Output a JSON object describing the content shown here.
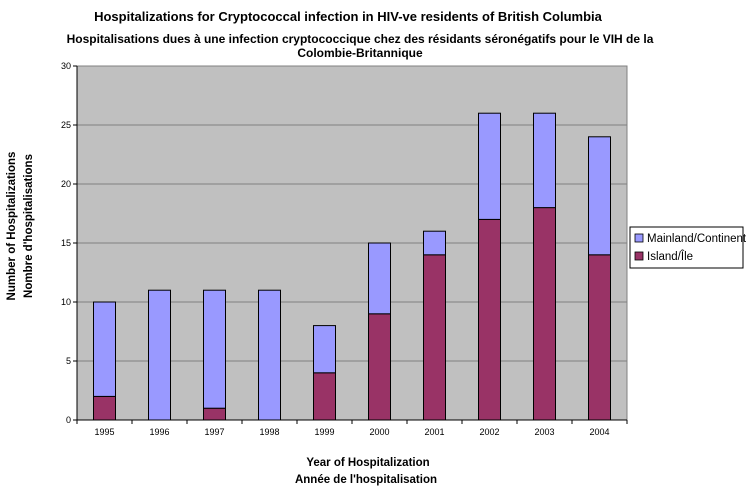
{
  "chart_data": {
    "type": "bar",
    "stacked": true,
    "title": "Hospitalizations for Cryptococcal infection in HIV-ve residents of British Columbia",
    "subtitle_lines": [
      "Hospitalisations dues à une infection cryptococcique chez des résidants séronégatifs pour le VIH de la",
      "Colombie-Britannique"
    ],
    "xlabel_lines": [
      "Year of Hospitalization",
      "Année de l'hospitalisation"
    ],
    "ylabel_lines": [
      "Number of Hospitalizations",
      "Nombre d'hospitalisations"
    ],
    "categories": [
      "1995",
      "1996",
      "1997",
      "1998",
      "1999",
      "2000",
      "2001",
      "2002",
      "2003",
      "2004"
    ],
    "series": [
      {
        "name": "Island/Île",
        "color": "#993366",
        "values": [
          2,
          0,
          1,
          0,
          4,
          9,
          14,
          17,
          18,
          14
        ]
      },
      {
        "name": "Mainland/Continent",
        "color": "#9999ff",
        "values": [
          8,
          11,
          10,
          11,
          4,
          6,
          2,
          9,
          8,
          10
        ]
      }
    ],
    "legend_order": [
      "Mainland/Continent",
      "Island/Île"
    ],
    "legend_position": "right",
    "ylim": [
      0,
      30
    ],
    "yticks": [
      0,
      5,
      10,
      15,
      20,
      25,
      30
    ],
    "grid": true,
    "plot_background": "#c0c0c0"
  }
}
